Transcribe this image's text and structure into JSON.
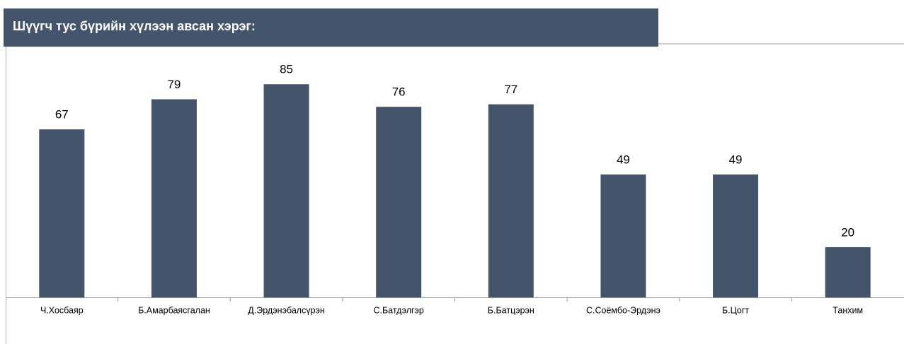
{
  "chart_data": {
    "type": "bar",
    "title": "Шүүгч тус бүрийн хүлээн авсан хэрэг:",
    "categories": [
      "Ч.Хосбаяр",
      "Б.Амарбаясгалан",
      "Д.Эрдэнэбалсүрэн",
      "С.Батдэлгэр",
      "Б.Батцэрэн",
      "С.Соёмбо-Эрдэнэ",
      "Б.Цогт",
      "Танхим"
    ],
    "values": [
      67,
      79,
      85,
      76,
      77,
      49,
      49,
      20
    ],
    "color": "#44546a",
    "ylim": [
      0,
      100
    ]
  }
}
